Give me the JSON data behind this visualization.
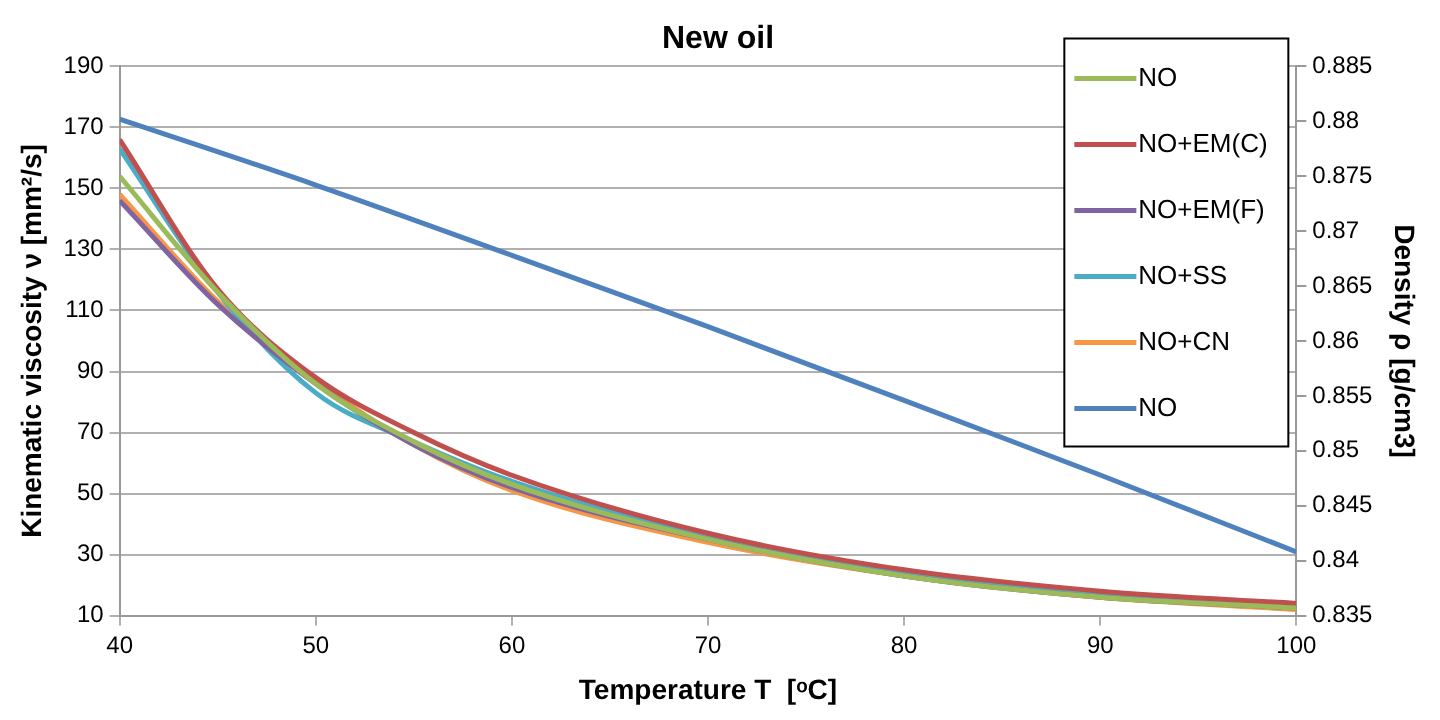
{
  "chart_data": {
    "type": "line",
    "title": "New oil",
    "xlabel": "Temperature T  [ᵒC]",
    "ylabel": "Kinematic viscosity ν [mm²/s]",
    "y2label": "Density ρ [g/cm3]",
    "x": [
      40,
      45,
      50,
      55,
      60,
      70,
      80,
      90,
      100
    ],
    "series": [
      {
        "name": "NO",
        "color": "#9bbb59",
        "values": [
          154,
          116,
          86,
          67,
          53,
          35,
          23,
          16,
          12.5
        ]
      },
      {
        "name": "NO+EM(C)",
        "color": "#c0504d",
        "values": [
          166,
          117,
          88,
          70,
          56,
          37,
          25,
          18,
          14
        ]
      },
      {
        "name": "NO+EM(F)",
        "color": "#8064a2",
        "values": [
          146,
          112,
          86,
          66,
          52,
          35,
          23,
          16,
          12.5
        ]
      },
      {
        "name": "NO+SS",
        "color": "#4bacc6",
        "values": [
          163,
          116,
          83,
          67,
          54,
          36,
          24,
          17,
          13.5
        ]
      },
      {
        "name": "NO+CN",
        "color": "#f79646",
        "values": [
          148,
          113,
          87,
          66,
          51,
          34,
          23,
          16,
          12
        ]
      },
      {
        "name": "NO",
        "color": "#4f81bd",
        "axis": "y2",
        "x": [
          40,
          50,
          60,
          70,
          80,
          90,
          100
        ],
        "values": [
          0.8802,
          0.8742,
          0.8678,
          0.8613,
          0.8546,
          0.8478,
          0.8408
        ]
      }
    ],
    "xlim": [
      40,
      100
    ],
    "xticks": [
      40,
      50,
      60,
      70,
      80,
      90,
      100
    ],
    "ylim": [
      10,
      190
    ],
    "yticks": [
      10,
      30,
      50,
      70,
      90,
      110,
      130,
      150,
      170,
      190
    ],
    "y2lim": [
      0.835,
      0.885
    ],
    "y2ticks": [
      0.835,
      0.84,
      0.845,
      0.85,
      0.855,
      0.86,
      0.865,
      0.87,
      0.875,
      0.88,
      0.885
    ],
    "grid": "y",
    "legend": "top right",
    "marker": "none",
    "line_style": "solid"
  }
}
